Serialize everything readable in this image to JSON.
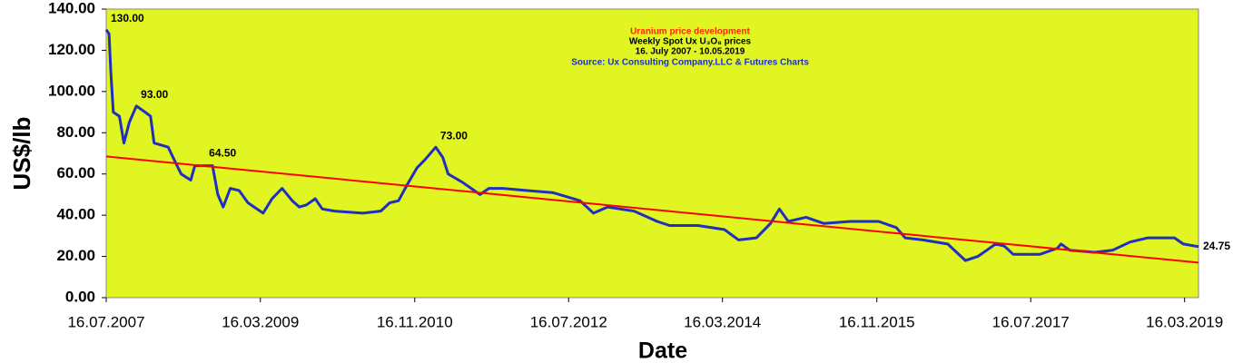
{
  "chart_data": {
    "type": "line",
    "title": "Uranium price development",
    "subtitle": [
      "Weekly Spot Ux U₃O₈ prices",
      "16. July 2007 - 10.05.2019",
      "Source: Ux Consulting Company.LLC & Futures Charts"
    ],
    "x_label": "Date",
    "y_label": "US$/lb",
    "background": "#e0f521",
    "x": [
      "16.07.2007",
      "27.07.2007",
      "03.08.2007",
      "13.08.2007",
      "06.09.2007",
      "24.09.2007",
      "15.10.2007",
      "12.11.2007",
      "17.12.2007",
      "07.01.2008",
      "21.01.2008",
      "17.03.2008",
      "05.04.2008",
      "07.05.2008",
      "14.06.2008",
      "30.06.2008",
      "08.09.2008",
      "29.09.2008",
      "20.10.2008",
      "17.11.2008",
      "22.12.2008",
      "26.01.2009",
      "27.03.2009",
      "01.05.2009",
      "10.06.2009",
      "20.07.2009",
      "17.08.2009",
      "14.09.2009",
      "19.10.2009",
      "16.11.2009",
      "04.01.2010",
      "25.04.2010",
      "05.07.2010",
      "09.08.2010",
      "13.09.2010",
      "18.10.2010",
      "25.11.2010",
      "27.12.2010",
      "07.02.2011",
      "07.03.2011",
      "28.03.2011",
      "23.05.2011",
      "01.08.2011",
      "05.09.2011",
      "31.10.2011",
      "30.01.2012",
      "14.05.2012",
      "30.08.2012",
      "22.10.2012",
      "17.12.2012",
      "01.04.2013",
      "01.07.2013",
      "19.08.2013",
      "09.12.2013",
      "24.03.2014",
      "19.05.2014",
      "28.07.2014",
      "22.09.2014",
      "27.10.2014",
      "01.12.2014",
      "09.02.2015",
      "20.04.2015",
      "03.08.2015",
      "23.11.2015",
      "01.02.2016",
      "07.03.2016",
      "16.05.2016",
      "22.08.2016",
      "31.10.2016",
      "19.12.2016",
      "23.01.2017",
      "27.02.2017",
      "03.04.2017",
      "08.05.2017",
      "21.08.2017",
      "30.10.2017",
      "13.11.2017",
      "18.12.2017",
      "26.03.2018",
      "04.06.2018",
      "13.08.2018",
      "22.10.2018",
      "04.02.2019",
      "11.03.2019",
      "10.05.2019"
    ],
    "series": [
      {
        "color": "#1f2fbf",
        "values": [
          130,
          128,
          110,
          90,
          88,
          75,
          85,
          93,
          90,
          88,
          75,
          73,
          68,
          60,
          57,
          64,
          64,
          50,
          44,
          53,
          52,
          46,
          41,
          48,
          53,
          47,
          44,
          45,
          48,
          43,
          42,
          41,
          42,
          46,
          47,
          55,
          63,
          67,
          73,
          68,
          60,
          56,
          50,
          53,
          53,
          52,
          51,
          47,
          41,
          44,
          42,
          37,
          35,
          35,
          33,
          28,
          29,
          36,
          43,
          37,
          39,
          36,
          37,
          37,
          34,
          29,
          28,
          26,
          18,
          20,
          23,
          26,
          25,
          21,
          21,
          24,
          26,
          23,
          22,
          23,
          27,
          29,
          29,
          26,
          24.75
        ]
      },
      {
        "color": "#ff0000",
        "x": [
          "16.07.2007",
          "10.05.2019"
        ],
        "values": [
          68.5,
          17
        ]
      }
    ],
    "annotations": [
      {
        "x": "16.07.2007",
        "value": 130,
        "label": "130.00"
      },
      {
        "x": "12.11.2007",
        "value": 93,
        "label": "93.00"
      },
      {
        "x": "07.08.2008",
        "value": 64.5,
        "label": "64.50"
      },
      {
        "x": "07.02.2011",
        "value": 73,
        "label": "73.00"
      },
      {
        "x": "10.05.2019",
        "value": 24.75,
        "label": "24.75"
      }
    ],
    "xlim": [
      "16.07.2007",
      "10.05.2019"
    ],
    "xticks": [
      "16.07.2007",
      "16.03.2009",
      "16.11.2010",
      "16.07.2012",
      "16.03.2014",
      "16.11.2015",
      "16.07.2017",
      "16.03.2019"
    ],
    "ylim": [
      0,
      140
    ],
    "yticks": [
      {
        "value": 0,
        "label": "0.00"
      },
      {
        "value": 20,
        "label": "20.00"
      },
      {
        "value": 40,
        "label": "40.00"
      },
      {
        "value": 60,
        "label": "60.00"
      },
      {
        "value": 80,
        "label": "80.00"
      },
      {
        "value": 100,
        "label": "100.00"
      },
      {
        "value": 120,
        "label": "120.00"
      },
      {
        "value": 140,
        "label": "140.00"
      }
    ]
  }
}
